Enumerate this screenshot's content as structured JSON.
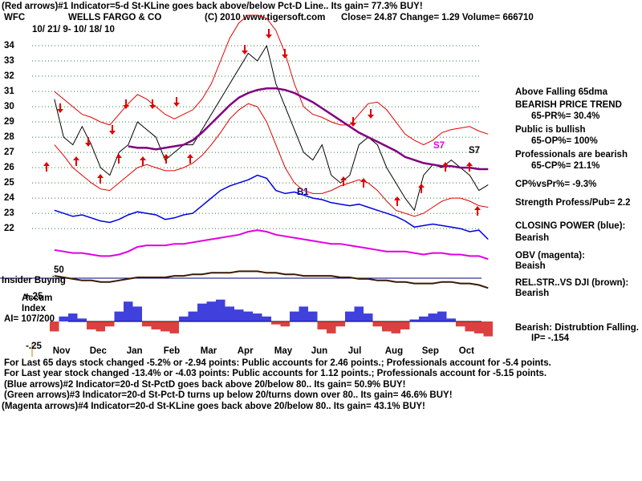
{
  "header": {
    "line1": "(Red arrows)#1 Indicator=5-d St-KLine goes back above/below Pct-D Line.. Its gain= 77.3% BUY!",
    "ticker": "WFC",
    "copyright": "(C) 2010 www.tigersoft.com",
    "quote": "Close=  24.87  Change=  1.29 Volume= 666710",
    "dates": "10/ 21/ 9- 10/ 18/ 10"
  },
  "side": [
    "BEARISH PRICE TREND",
    "65-PR%= 30.4%",
    "Public is bullish",
    "65-OP%= 100%",
    "Professionals are bearish",
    "65-CP%= 21.1%",
    "CP%vsPr%= -9.3%",
    "Strength Profess/Pub= 2.2",
    "Bearish",
    "Beaish",
    "Bearish",
    "Bearish: Distrubtion Falling.",
    "IP= -.154"
  ],
  "left_labels": [
    "Insider Buying",
    "50",
    "Accum",
    "Index",
    "AI= 107/200"
  ],
  "annotations": [
    "S7",
    "S7",
    "B1"
  ],
  "footer": [
    "For Last 65 days stock changed -5.2% or -2.94 points:  Public accounts for  2.46 points.;  Professionals account for -5.4 points.",
    "For Last year stock changed -13.4% or -4.03 points:  Public accounts for  1.12 points.;  Professionals account for -5.15 points.",
    "(Blue arrows)#2 Indicator=20-d St-PctD goes back above 20/below 80.. Its gain= 50.9% BUY!",
    "(Green arrows)#3 Indicator=20-d St-Pct-D turns up below 20/turns down over 80.. Its gain= 46.6% BUY!",
    "(Magenta arrows)#4 Indicator=20-d St-KLine goes back above 20/below 80.. Its gain= 43.1% BUY!"
  ],
  "chart_data": [
    {
      "type": "line",
      "ylim": [
        17.8,
        36
      ],
      "yticks": [
        22,
        23,
        24,
        25,
        26,
        27,
        28,
        29,
        30,
        31,
        32,
        33,
        34
      ],
      "grid": true,
      "grid_color": "#2e7d32",
      "series": [
        {
          "color": "#e00000",
          "values": [
            31,
            30.5,
            30,
            29.5,
            29.3,
            29,
            28.8,
            29.5,
            30.2,
            30.8,
            30.5,
            30,
            29.5,
            29.2,
            29.5,
            29.8,
            30.5,
            31.5,
            33,
            34.5,
            35.5,
            36,
            36,
            35.8,
            35,
            33.5,
            31.5,
            30,
            29.5,
            29.3,
            29,
            28.8,
            28.8,
            29.5,
            30.2,
            30.3,
            29.8,
            29,
            28.2,
            27.8,
            27.5,
            27.8,
            28.3,
            28.5,
            28.6,
            28.7,
            28.4,
            28.2
          ]
        },
        {
          "color": "#e00000",
          "values": [
            27.5,
            26.8,
            26,
            25.5,
            25,
            24.6,
            24.5,
            25,
            25.5,
            26,
            26.2,
            26,
            25.8,
            25.8,
            26,
            26.3,
            26.8,
            27.5,
            28.3,
            29.2,
            29.8,
            30.2,
            30,
            29,
            27.5,
            26,
            25,
            24.5,
            24.3,
            24.3,
            24.5,
            24.8,
            25,
            25.2,
            25,
            24.5,
            23.8,
            23.2,
            23,
            22.8,
            23,
            23.4,
            23.8,
            24,
            24,
            23.8,
            23.5,
            23.4
          ]
        },
        {
          "name": "WELLS FARGO & CO",
          "color": "#000000",
          "values": [
            30.5,
            28,
            27.5,
            28.7,
            27.5,
            26,
            25.5,
            27,
            27.5,
            29,
            28.5,
            28,
            26.5,
            27,
            27.5,
            27.5,
            28.5,
            29.5,
            30.5,
            31.5,
            32.5,
            33.5,
            33,
            34,
            31.5,
            30,
            28.5,
            27,
            26.5,
            27.5,
            25.5,
            25,
            25.5,
            27.5,
            28,
            27.5,
            26,
            25,
            24,
            23.2,
            25.5,
            26.2,
            26,
            26.5,
            26,
            25.5,
            24.5,
            24.87
          ]
        },
        {
          "name": "Above Falling 65dma",
          "color": "#800080",
          "width": 2.5,
          "values": [
            null,
            null,
            null,
            null,
            null,
            null,
            null,
            null,
            27.4,
            27.3,
            27.3,
            27.2,
            27.3,
            27.4,
            27.5,
            27.8,
            28.3,
            28.9,
            29.5,
            30.1,
            30.6,
            30.9,
            31.1,
            31.2,
            31.2,
            31.1,
            30.9,
            30.6,
            30.3,
            29.9,
            29.5,
            29.1,
            28.7,
            28.3,
            28,
            27.7,
            27.4,
            27.1,
            26.7,
            26.5,
            26.3,
            26.2,
            26.1,
            26.1,
            26,
            26,
            25.9,
            25.9
          ]
        },
        {
          "name": "CLOSING POWER (blue):",
          "color": "#0000e0",
          "width": 1.5,
          "values": [
            23.2,
            23,
            22.8,
            22.9,
            22.7,
            22.5,
            22.4,
            22.6,
            22.9,
            23.1,
            23,
            22.9,
            22.6,
            22.7,
            22.9,
            23,
            23.5,
            24,
            24.5,
            24.8,
            25,
            25.2,
            25.5,
            25.3,
            24.5,
            24.3,
            24.4,
            24.2,
            24,
            23.9,
            23.7,
            23.6,
            23.5,
            23.6,
            23.4,
            23.2,
            23,
            22.8,
            22.5,
            22.1,
            22.2,
            22.3,
            22.2,
            22.1,
            22,
            21.8,
            21.9,
            21.3
          ]
        },
        {
          "name": "OBV (magenta):",
          "color": "#e000e0",
          "width": 2,
          "values": [
            20.6,
            20.5,
            20.4,
            20.4,
            20.3,
            20.2,
            20.2,
            20.3,
            20.5,
            20.8,
            20.9,
            20.9,
            20.9,
            21,
            21,
            21.1,
            21.2,
            21.3,
            21.4,
            21.5,
            21.6,
            21.8,
            21.9,
            21.8,
            21.6,
            21.5,
            21.4,
            21.3,
            21.2,
            21.1,
            21,
            21,
            20.9,
            20.8,
            20.7,
            20.6,
            20.5,
            20.5,
            20.5,
            20.4,
            20.3,
            20.4,
            20.4,
            20.3,
            20.3,
            20.2,
            20.2,
            20
          ]
        },
        {
          "name": "REL.STR..VS DJI (brown):",
          "color": "#3a1a00",
          "width": 2,
          "values": [
            18.9,
            18.8,
            18.7,
            18.6,
            18.6,
            18.5,
            18.5,
            18.6,
            18.7,
            18.8,
            18.8,
            18.8,
            18.8,
            18.9,
            18.9,
            19,
            19,
            19.1,
            19.1,
            19.1,
            19.2,
            19.2,
            19.2,
            19.1,
            19.1,
            19,
            19,
            18.9,
            18.9,
            18.9,
            18.9,
            18.8,
            18.8,
            18.7,
            18.7,
            18.6,
            18.6,
            18.5,
            18.5,
            18.4,
            18.4,
            18.4,
            18.5,
            18.5,
            18.4,
            18.4,
            18.3,
            18.1
          ]
        }
      ]
    },
    {
      "type": "bar",
      "ylim": [
        -0.25,
        0.25
      ],
      "yticks": [
        {
          "value": 0.25,
          "label": "+.25"
        },
        {
          "value": -0.25,
          "label": "-.25"
        }
      ],
      "positive_color": "#0000d0",
      "negative_color": "#d00000",
      "categories": [
        "Nov",
        null,
        null,
        null,
        "Dec",
        null,
        null,
        null,
        "Jan",
        null,
        null,
        null,
        "Feb",
        null,
        null,
        null,
        "Mar",
        null,
        null,
        null,
        "Apr",
        null,
        null,
        null,
        "May",
        null,
        null,
        null,
        "Jun",
        null,
        null,
        null,
        "Jul",
        null,
        null,
        null,
        "Aug",
        null,
        null,
        null,
        "Sep",
        null,
        null,
        null,
        "Oct",
        null,
        null,
        null
      ],
      "values": [
        -0.1,
        0.05,
        0.08,
        0.03,
        -0.08,
        -0.1,
        -0.05,
        0.1,
        0.2,
        0.15,
        -0.05,
        -0.08,
        -0.1,
        -0.12,
        0.05,
        0.1,
        0.18,
        0.2,
        0.22,
        0.15,
        0.12,
        0.1,
        0.08,
        0.05,
        -0.03,
        -0.05,
        0.1,
        0.15,
        0.1,
        -0.08,
        -0.12,
        -0.05,
        0.1,
        0.15,
        0.08,
        -0.05,
        -0.1,
        -0.12,
        -0.08,
        0.02,
        0.05,
        0.08,
        0.1,
        0.03,
        -0.05,
        -0.1,
        -0.12,
        -0.15
      ]
    }
  ]
}
